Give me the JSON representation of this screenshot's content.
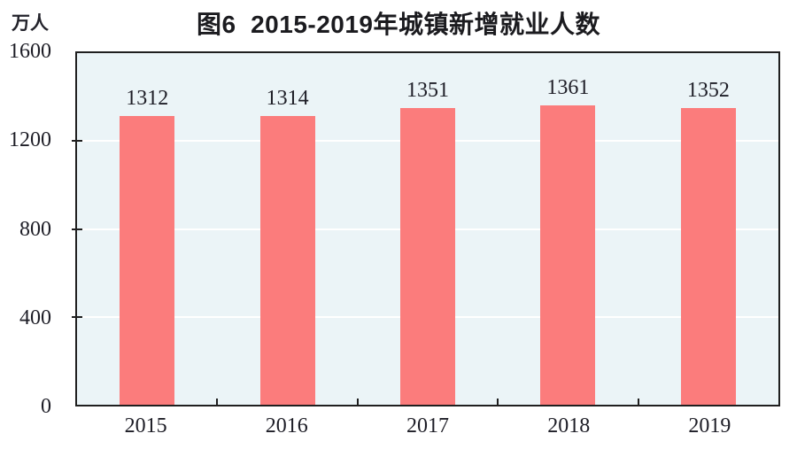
{
  "chart_data": {
    "type": "bar",
    "title": "图6  2015-2019年城镇新增就业人数",
    "unit_label": "万人",
    "categories": [
      "2015",
      "2016",
      "2017",
      "2018",
      "2019"
    ],
    "values": [
      1312,
      1314,
      1351,
      1361,
      1352
    ],
    "xlabel": "",
    "ylabel": "万人",
    "ylim": [
      0,
      1600
    ],
    "yticks": [
      0,
      400,
      800,
      1200,
      1600
    ],
    "grid": "horizontal",
    "legend": "none",
    "colors": {
      "bar_fill": "#FB7C7C",
      "plot_background": "#EBF4F7",
      "gridline": "#FFFFFF",
      "frame": "#1F1F1F",
      "text": "#1D1D26"
    }
  }
}
